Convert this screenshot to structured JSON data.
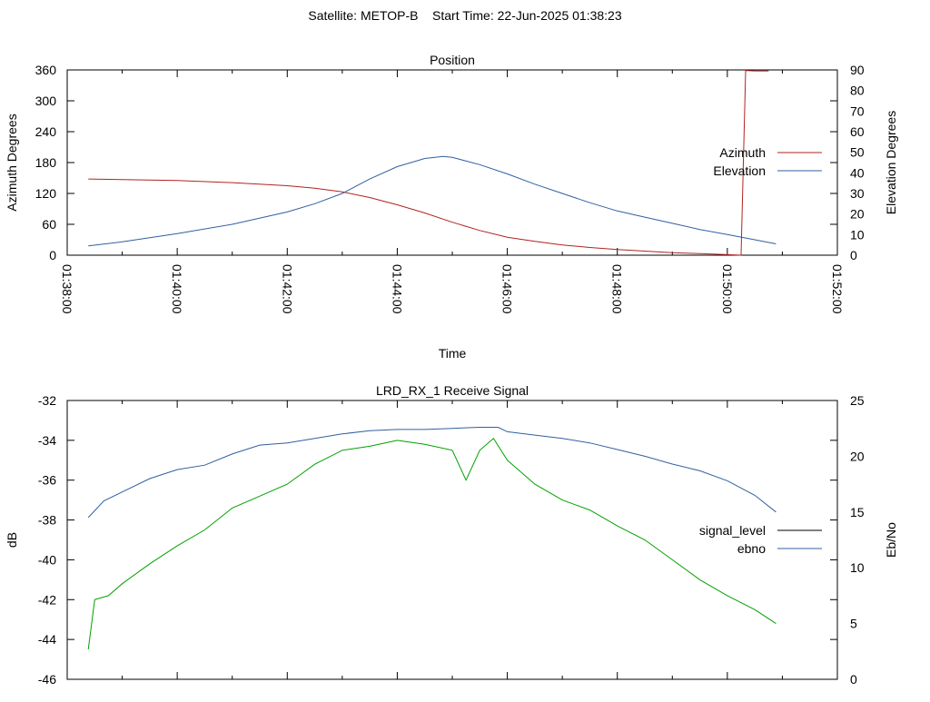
{
  "page_title": "Satellite: METOP-B    Start Time: 22-Jun-2025 01:38:23",
  "chart_data": [
    {
      "type": "line",
      "title": "Position",
      "xlabel": "Time",
      "ylabel": "Azimuth Degrees",
      "y2label": "Elevation Degrees",
      "xlim": [
        "01:38:00",
        "01:52:00"
      ],
      "xticks": [
        "01:38:00",
        "01:40:00",
        "01:42:00",
        "01:44:00",
        "01:46:00",
        "01:48:00",
        "01:50:00",
        "01:52:00"
      ],
      "ylim": [
        0,
        360
      ],
      "yticks": [
        0,
        60,
        120,
        180,
        240,
        300,
        360
      ],
      "y2lim": [
        0,
        90
      ],
      "y2ticks": [
        0,
        10,
        20,
        30,
        40,
        50,
        60,
        70,
        80,
        90
      ],
      "legend_position": "right",
      "series": [
        {
          "name": "Azimuth",
          "axis": "y",
          "color": "#b22222",
          "x": [
            "01:38:23",
            "01:39:00",
            "01:40:00",
            "01:41:00",
            "01:42:00",
            "01:42:30",
            "01:43:00",
            "01:43:30",
            "01:44:00",
            "01:44:30",
            "01:45:00",
            "01:45:30",
            "01:46:00",
            "01:46:30",
            "01:47:00",
            "01:47:30",
            "01:48:00",
            "01:48:30",
            "01:49:00",
            "01:49:30",
            "01:50:00",
            "01:50:15",
            "01:50:15",
            "01:50:20",
            "01:50:30",
            "01:50:45"
          ],
          "values": [
            148,
            147,
            145,
            141,
            135,
            130,
            123,
            112,
            98,
            82,
            64,
            48,
            35,
            27,
            20,
            15,
            11,
            8,
            5,
            3,
            1,
            0,
            1,
            359,
            358,
            358
          ]
        },
        {
          "name": "Elevation",
          "axis": "y2",
          "color": "#3060a0",
          "x": [
            "01:38:23",
            "01:39:00",
            "01:40:00",
            "01:41:00",
            "01:42:00",
            "01:42:30",
            "01:43:00",
            "01:43:30",
            "01:44:00",
            "01:44:30",
            "01:44:50",
            "01:45:00",
            "01:45:30",
            "01:46:00",
            "01:46:30",
            "01:47:00",
            "01:47:30",
            "01:48:00",
            "01:48:30",
            "01:49:00",
            "01:49:30",
            "01:50:00",
            "01:50:30",
            "01:50:53"
          ],
          "values": [
            4.5,
            6.5,
            10.5,
            15,
            21,
            25,
            30,
            37,
            43,
            47,
            48,
            47.5,
            44,
            39.5,
            34.5,
            30,
            25.5,
            21.5,
            18.5,
            15.5,
            12.5,
            10,
            7.5,
            5.5
          ]
        }
      ]
    },
    {
      "type": "line",
      "title": "LRD_RX_1 Receive Signal",
      "ylabel": "dB",
      "y2label": "Eb/No",
      "xlim": [
        "01:38:00",
        "01:52:00"
      ],
      "ylim": [
        -46,
        -32
      ],
      "yticks": [
        -46,
        -44,
        -42,
        -40,
        -38,
        -36,
        -34,
        -32
      ],
      "y2lim": [
        0,
        25
      ],
      "y2ticks": [
        0,
        5,
        10,
        15,
        20,
        25
      ],
      "legend_position": "right",
      "series": [
        {
          "name": "signal_level",
          "axis": "y",
          "color": "#00a000",
          "x": [
            "01:38:23",
            "01:38:30",
            "01:38:45",
            "01:39:00",
            "01:39:30",
            "01:40:00",
            "01:40:30",
            "01:41:00",
            "01:41:30",
            "01:42:00",
            "01:42:30",
            "01:43:00",
            "01:43:30",
            "01:44:00",
            "01:44:30",
            "01:45:00",
            "01:45:15",
            "01:45:30",
            "01:45:45",
            "01:46:00",
            "01:46:30",
            "01:47:00",
            "01:47:30",
            "01:48:00",
            "01:48:30",
            "01:49:00",
            "01:49:30",
            "01:50:00",
            "01:50:30",
            "01:50:53"
          ],
          "values": [
            -44.5,
            -42,
            -41.8,
            -41.2,
            -40.2,
            -39.3,
            -38.5,
            -37.4,
            -36.8,
            -36.2,
            -35.2,
            -34.5,
            -34.3,
            -34.0,
            -34.2,
            -34.5,
            -36.0,
            -34.5,
            -33.9,
            -35.0,
            -36.2,
            -37.0,
            -37.5,
            -38.3,
            -39.0,
            -40.0,
            -41.0,
            -41.8,
            -42.5,
            -43.2
          ]
        },
        {
          "name": "ebno",
          "axis": "y2",
          "color": "#3060a0",
          "x": [
            "01:38:23",
            "01:38:40",
            "01:39:00",
            "01:39:30",
            "01:40:00",
            "01:40:30",
            "01:41:00",
            "01:41:30",
            "01:42:00",
            "01:42:30",
            "01:43:00",
            "01:43:30",
            "01:44:00",
            "01:44:30",
            "01:45:00",
            "01:45:30",
            "01:45:50",
            "01:46:00",
            "01:46:30",
            "01:47:00",
            "01:47:30",
            "01:48:00",
            "01:48:30",
            "01:49:00",
            "01:49:30",
            "01:50:00",
            "01:50:30",
            "01:50:53"
          ],
          "values": [
            14.5,
            16,
            16.8,
            18,
            18.8,
            19.2,
            20.2,
            21.0,
            21.2,
            21.6,
            22.0,
            22.3,
            22.4,
            22.4,
            22.5,
            22.6,
            22.6,
            22.2,
            21.9,
            21.6,
            21.2,
            20.6,
            20.0,
            19.3,
            18.7,
            17.8,
            16.5,
            15.0
          ]
        }
      ]
    }
  ]
}
